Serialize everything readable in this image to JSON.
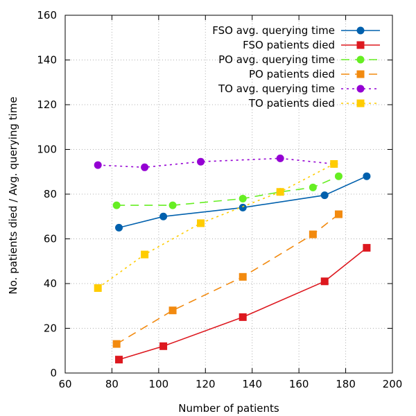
{
  "chart_data": {
    "type": "line",
    "title": "",
    "xlabel": "Number of patients",
    "ylabel": "No. patients died / Avg. querying time",
    "xlim": [
      60,
      200
    ],
    "ylim": [
      0,
      160
    ],
    "xticks": [
      60,
      80,
      100,
      120,
      140,
      160,
      180,
      200
    ],
    "yticks": [
      0,
      20,
      40,
      60,
      80,
      100,
      120,
      140,
      160
    ],
    "x_tick_labels": [
      "60",
      "80",
      "100",
      "120",
      "140",
      "160",
      "180",
      "200"
    ],
    "y_tick_labels": [
      "0",
      "20",
      "40",
      "60",
      "80",
      "100",
      "120",
      "140",
      "160"
    ],
    "grid": true,
    "legend_position": "top-right",
    "series": [
      {
        "name": "FSO avg. querying time",
        "color": "#0060ad",
        "dash": "solid",
        "marker": "circle",
        "points": [
          [
            83,
            65
          ],
          [
            102,
            70
          ],
          [
            136,
            74
          ],
          [
            171,
            79.5
          ],
          [
            189,
            88
          ]
        ]
      },
      {
        "name": "FSO patients died",
        "color": "#dd181f",
        "dash": "solid",
        "marker": "square",
        "points": [
          [
            83,
            6
          ],
          [
            102,
            12
          ],
          [
            136,
            25
          ],
          [
            171,
            41
          ],
          [
            189,
            56
          ]
        ]
      },
      {
        "name": "PO avg. querying time",
        "color": "#66ee22",
        "dash": "dashed",
        "marker": "circle",
        "points": [
          [
            82,
            75
          ],
          [
            106,
            75
          ],
          [
            136,
            78
          ],
          [
            152,
            81
          ],
          [
            166,
            83
          ],
          [
            177,
            88
          ]
        ]
      },
      {
        "name": "PO patients died",
        "color": "#f28a0f",
        "dash": "dashed",
        "marker": "square",
        "points": [
          [
            82,
            13
          ],
          [
            106,
            28
          ],
          [
            136,
            43
          ],
          [
            166,
            62
          ],
          [
            177,
            71
          ]
        ]
      },
      {
        "name": "TO avg. querying time",
        "color": "#9400d3",
        "dash": "dotted",
        "marker": "circle",
        "points": [
          [
            74,
            93
          ],
          [
            94,
            92
          ],
          [
            118,
            94.5
          ],
          [
            152,
            96
          ],
          [
            175,
            93.5
          ]
        ]
      },
      {
        "name": "TO patients died",
        "color": "#ffcc00",
        "dash": "dotted",
        "marker": "square",
        "points": [
          [
            74,
            38
          ],
          [
            94,
            53
          ],
          [
            118,
            67
          ],
          [
            152,
            81
          ],
          [
            175,
            93.5
          ]
        ]
      }
    ]
  }
}
